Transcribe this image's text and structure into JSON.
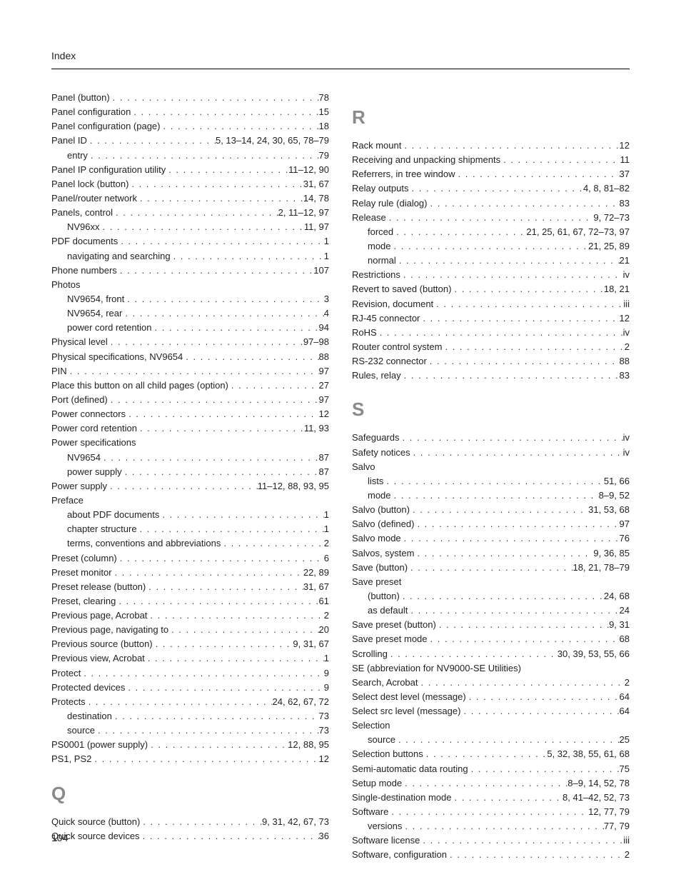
{
  "header": "Index",
  "page_number": "104",
  "left_column": {
    "groups": [
      {
        "heading": null,
        "entries": [
          {
            "term": "Panel (button)",
            "pages": "78",
            "sub": false
          },
          {
            "term": "Panel configuration",
            "pages": "15",
            "sub": false
          },
          {
            "term": "Panel configuration (page)",
            "pages": "18",
            "sub": false
          },
          {
            "term": "Panel ID",
            "pages": "5, 13–14, 24, 30, 65, 78–79",
            "sub": false
          },
          {
            "term": "entry",
            "pages": "79",
            "sub": true
          },
          {
            "term": "Panel IP configuration utility",
            "pages": "11–12, 90",
            "sub": false
          },
          {
            "term": "Panel lock (button)",
            "pages": "31, 67",
            "sub": false
          },
          {
            "term": "Panel/router network",
            "pages": "14, 78",
            "sub": false
          },
          {
            "term": "Panels, control",
            "pages": "2, 11–12, 97",
            "sub": false
          },
          {
            "term": "NV96xx",
            "pages": "11, 97",
            "sub": true
          },
          {
            "term": "PDF documents",
            "pages": "1",
            "sub": false
          },
          {
            "term": "navigating and searching",
            "pages": "1",
            "sub": true
          },
          {
            "term": "Phone numbers",
            "pages": "107",
            "sub": false
          },
          {
            "term": "Photos",
            "pages": null,
            "sub": false
          },
          {
            "term": "NV9654, front",
            "pages": "3",
            "sub": true
          },
          {
            "term": "NV9654, rear",
            "pages": "4",
            "sub": true
          },
          {
            "term": "power cord retention",
            "pages": "94",
            "sub": true
          },
          {
            "term": "Physical level",
            "pages": "97–98",
            "sub": false
          },
          {
            "term": "Physical specifications, NV9654",
            "pages": "88",
            "sub": false
          },
          {
            "term": "PIN",
            "pages": "97",
            "sub": false
          },
          {
            "term": "Place this button on all child pages (option)",
            "pages": "27",
            "sub": false
          },
          {
            "term": "Port (defined)",
            "pages": "97",
            "sub": false
          },
          {
            "term": "Power connectors",
            "pages": "12",
            "sub": false
          },
          {
            "term": "Power cord retention",
            "pages": "11, 93",
            "sub": false
          },
          {
            "term": "Power specifications",
            "pages": null,
            "sub": false
          },
          {
            "term": "NV9654",
            "pages": "87",
            "sub": true
          },
          {
            "term": "power supply",
            "pages": "87",
            "sub": true
          },
          {
            "term": "Power supply",
            "pages": "11–12, 88, 93, 95",
            "sub": false
          },
          {
            "term": "Preface",
            "pages": null,
            "sub": false
          },
          {
            "term": "about PDF documents",
            "pages": "1",
            "sub": true
          },
          {
            "term": "chapter structure",
            "pages": "1",
            "sub": true
          },
          {
            "term": "terms, conventions and abbreviations",
            "pages": "2",
            "sub": true
          },
          {
            "term": "Preset (column)",
            "pages": "6",
            "sub": false
          },
          {
            "term": "Preset monitor",
            "pages": "22, 89",
            "sub": false
          },
          {
            "term": "Preset release (button)",
            "pages": "31, 67",
            "sub": false
          },
          {
            "term": "Preset, clearing",
            "pages": "61",
            "sub": false
          },
          {
            "term": "Previous page, Acrobat",
            "pages": "2",
            "sub": false
          },
          {
            "term": "Previous page, navigating to",
            "pages": "20",
            "sub": false
          },
          {
            "term": "Previous source (button)",
            "pages": "9, 31, 67",
            "sub": false
          },
          {
            "term": "Previous view, Acrobat",
            "pages": "1",
            "sub": false
          },
          {
            "term": "Protect",
            "pages": "9",
            "sub": false
          },
          {
            "term": "Protected devices",
            "pages": "9",
            "sub": false
          },
          {
            "term": "Protects",
            "pages": "24, 62, 67, 72",
            "sub": false
          },
          {
            "term": "destination",
            "pages": "73",
            "sub": true
          },
          {
            "term": "source",
            "pages": "73",
            "sub": true
          },
          {
            "term": "PS0001 (power supply)",
            "pages": "12, 88, 95",
            "sub": false
          },
          {
            "term": "PS1, PS2",
            "pages": "12",
            "sub": false
          }
        ]
      },
      {
        "heading": "Q",
        "entries": [
          {
            "term": "Quick source (button)",
            "pages": "9, 31, 42, 67, 73",
            "sub": false
          },
          {
            "term": "Quick source devices",
            "pages": "36",
            "sub": false
          }
        ]
      }
    ]
  },
  "right_column": {
    "groups": [
      {
        "heading": "R",
        "entries": [
          {
            "term": "Rack mount",
            "pages": "12",
            "sub": false
          },
          {
            "term": "Receiving and unpacking shipments",
            "pages": "11",
            "sub": false
          },
          {
            "term": "Referrers, in tree window",
            "pages": "37",
            "sub": false
          },
          {
            "term": "Relay outputs",
            "pages": "4, 8, 81–82",
            "sub": false
          },
          {
            "term": "Relay rule (dialog)",
            "pages": "83",
            "sub": false
          },
          {
            "term": "Release",
            "pages": "9, 72–73",
            "sub": false
          },
          {
            "term": "forced",
            "pages": "21, 25, 61, 67, 72–73, 97",
            "sub": true
          },
          {
            "term": "mode",
            "pages": "21, 25, 89",
            "sub": true
          },
          {
            "term": "normal",
            "pages": "21",
            "sub": true
          },
          {
            "term": "Restrictions",
            "pages": "iv",
            "sub": false
          },
          {
            "term": "Revert to saved (button)",
            "pages": "18, 21",
            "sub": false
          },
          {
            "term": "Revision, document",
            "pages": "iii",
            "sub": false
          },
          {
            "term": "RJ-45 connector",
            "pages": "12",
            "sub": false
          },
          {
            "term": "RoHS",
            "pages": "iv",
            "sub": false
          },
          {
            "term": "Router control system",
            "pages": "2",
            "sub": false
          },
          {
            "term": "RS-232 connector",
            "pages": "88",
            "sub": false
          },
          {
            "term": "Rules, relay",
            "pages": "83",
            "sub": false
          }
        ]
      },
      {
        "heading": "S",
        "entries": [
          {
            "term": "Safeguards",
            "pages": "iv",
            "sub": false
          },
          {
            "term": "Safety notices",
            "pages": "iv",
            "sub": false
          },
          {
            "term": "Salvo",
            "pages": null,
            "sub": false
          },
          {
            "term": "lists",
            "pages": "51, 66",
            "sub": true
          },
          {
            "term": "mode",
            "pages": "8–9, 52",
            "sub": true
          },
          {
            "term": "Salvo (button)",
            "pages": "31, 53, 68",
            "sub": false
          },
          {
            "term": "Salvo (defined)",
            "pages": "97",
            "sub": false
          },
          {
            "term": "Salvo mode",
            "pages": "76",
            "sub": false
          },
          {
            "term": "Salvos, system",
            "pages": "9, 36, 85",
            "sub": false
          },
          {
            "term": "Save (button)",
            "pages": "18, 21, 78–79",
            "sub": false
          },
          {
            "term": "Save preset",
            "pages": null,
            "sub": false
          },
          {
            "term": "(button)",
            "pages": "24, 68",
            "sub": true
          },
          {
            "term": "as default",
            "pages": "24",
            "sub": true
          },
          {
            "term": "Save preset (button)",
            "pages": "9, 31",
            "sub": false
          },
          {
            "term": "Save preset mode",
            "pages": "68",
            "sub": false
          },
          {
            "term": "Scrolling",
            "pages": "30, 39, 53, 55, 66",
            "sub": false
          },
          {
            "term": "SE (abbreviation for NV9000-SE Utilities)",
            "pages": null,
            "sub": false
          },
          {
            "term": "Search, Acrobat",
            "pages": "2",
            "sub": false
          },
          {
            "term": "Select dest level (message)",
            "pages": "64",
            "sub": false
          },
          {
            "term": "Select src level (message)",
            "pages": "64",
            "sub": false
          },
          {
            "term": "Selection",
            "pages": null,
            "sub": false
          },
          {
            "term": "source",
            "pages": "25",
            "sub": true
          },
          {
            "term": "Selection buttons",
            "pages": "5, 32, 38, 55, 61, 68",
            "sub": false
          },
          {
            "term": "Semi-automatic data routing",
            "pages": "75",
            "sub": false
          },
          {
            "term": "Setup mode",
            "pages": "8–9, 14, 52, 78",
            "sub": false
          },
          {
            "term": "Single-destination mode",
            "pages": "8, 41–42, 52, 73",
            "sub": false
          },
          {
            "term": "Software",
            "pages": "12, 77, 79",
            "sub": false
          },
          {
            "term": "versions",
            "pages": "77, 79",
            "sub": true
          },
          {
            "term": "Software license",
            "pages": "iii",
            "sub": false
          },
          {
            "term": "Software, configuration",
            "pages": "2",
            "sub": false
          }
        ]
      }
    ]
  }
}
